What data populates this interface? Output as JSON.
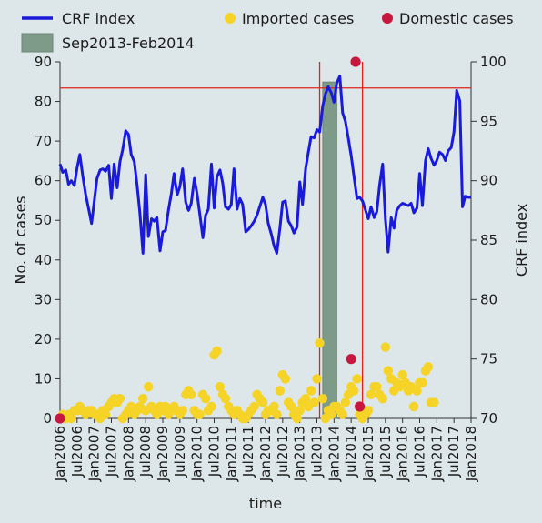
{
  "chart_data": {
    "type": "line+scatter",
    "xlabel": "time",
    "ylabel_left": "No. of cases",
    "ylabel_right": "CRF index",
    "xlim": [
      2006.0,
      2018.0
    ],
    "ylim_left": [
      0,
      90
    ],
    "ylim_right": [
      70,
      100
    ],
    "left_ticks": [
      0,
      10,
      20,
      30,
      40,
      50,
      60,
      70,
      80,
      90
    ],
    "right_ticks": [
      70,
      75,
      80,
      85,
      90,
      95,
      100
    ],
    "x_ticks": [
      {
        "label": "Jan2006",
        "x": 2006.0
      },
      {
        "label": "Jul2006",
        "x": 2006.5
      },
      {
        "label": "Jan2007",
        "x": 2007.0
      },
      {
        "label": "Jul2007",
        "x": 2007.5
      },
      {
        "label": "Jan2008",
        "x": 2008.0
      },
      {
        "label": "Jul2008",
        "x": 2008.5
      },
      {
        "label": "Jan2009",
        "x": 2009.0
      },
      {
        "label": "Jul2009",
        "x": 2009.5
      },
      {
        "label": "Jan2010",
        "x": 2010.0
      },
      {
        "label": "Jul2010",
        "x": 2010.5
      },
      {
        "label": "Jan2011",
        "x": 2011.0
      },
      {
        "label": "Jul2011",
        "x": 2011.5
      },
      {
        "label": "Jan2012",
        "x": 2012.0
      },
      {
        "label": "Jul2012",
        "x": 2012.5
      },
      {
        "label": "Jan2013",
        "x": 2013.0
      },
      {
        "label": "Jul2013",
        "x": 2013.5
      },
      {
        "label": "Jan2014",
        "x": 2014.0
      },
      {
        "label": "Jul2014",
        "x": 2014.5
      },
      {
        "label": "Jan2015",
        "x": 2015.0
      },
      {
        "label": "Jul2015",
        "x": 2015.5
      },
      {
        "label": "Jan2016",
        "x": 2016.0
      },
      {
        "label": "Jul2016",
        "x": 2016.5
      },
      {
        "label": "Jan2017",
        "x": 2017.0
      },
      {
        "label": "Jul2017",
        "x": 2017.5
      },
      {
        "label": "Jan2018",
        "x": 2018.0
      }
    ],
    "legend": {
      "crf": "CRF index",
      "imported": "Imported cases",
      "domestic": "Domestic cases",
      "period": "Sep2013-Feb2014"
    },
    "colors": {
      "crf": "#1a1adb",
      "imported": "#f5d327",
      "domestic": "#c8173f",
      "period": "#7e9b8a",
      "refline": "#e0231b",
      "background": "#dde6e8"
    },
    "shaded_period": [
      2013.67,
      2014.08
    ],
    "reference_lines": {
      "horizontal_crf": 97.8,
      "vertical_x": [
        2013.58,
        2014.83
      ]
    },
    "crf_series": [
      [
        2006.0,
        91.4
      ],
      [
        2006.08,
        90.7
      ],
      [
        2006.17,
        90.9
      ],
      [
        2006.25,
        89.7
      ],
      [
        2006.33,
        90.0
      ],
      [
        2006.42,
        89.6
      ],
      [
        2006.5,
        91.1
      ],
      [
        2006.58,
        92.2
      ],
      [
        2006.67,
        90.3
      ],
      [
        2006.75,
        88.8
      ],
      [
        2006.83,
        87.7
      ],
      [
        2006.92,
        86.4
      ],
      [
        2007.0,
        88.3
      ],
      [
        2007.08,
        90.2
      ],
      [
        2007.17,
        90.9
      ],
      [
        2007.25,
        91.0
      ],
      [
        2007.33,
        90.8
      ],
      [
        2007.42,
        91.3
      ],
      [
        2007.5,
        88.5
      ],
      [
        2007.58,
        91.4
      ],
      [
        2007.67,
        89.4
      ],
      [
        2007.75,
        91.6
      ],
      [
        2007.83,
        92.6
      ],
      [
        2007.92,
        94.2
      ],
      [
        2008.0,
        93.9
      ],
      [
        2008.08,
        92.2
      ],
      [
        2008.17,
        91.6
      ],
      [
        2008.25,
        89.6
      ],
      [
        2008.33,
        87.3
      ],
      [
        2008.42,
        83.9
      ],
      [
        2008.5,
        90.5
      ],
      [
        2008.58,
        85.3
      ],
      [
        2008.67,
        86.8
      ],
      [
        2008.75,
        86.6
      ],
      [
        2008.83,
        86.9
      ],
      [
        2008.92,
        84.1
      ],
      [
        2009.0,
        85.7
      ],
      [
        2009.08,
        85.8
      ],
      [
        2009.17,
        87.6
      ],
      [
        2009.25,
        88.9
      ],
      [
        2009.33,
        90.6
      ],
      [
        2009.42,
        88.8
      ],
      [
        2009.5,
        89.5
      ],
      [
        2009.58,
        91.0
      ],
      [
        2009.67,
        88.2
      ],
      [
        2009.75,
        87.5
      ],
      [
        2009.83,
        88.1
      ],
      [
        2009.92,
        90.2
      ],
      [
        2010.0,
        88.9
      ],
      [
        2010.08,
        87.2
      ],
      [
        2010.17,
        85.2
      ],
      [
        2010.25,
        87.1
      ],
      [
        2010.33,
        87.6
      ],
      [
        2010.42,
        91.4
      ],
      [
        2010.5,
        87.7
      ],
      [
        2010.58,
        90.3
      ],
      [
        2010.67,
        90.9
      ],
      [
        2010.75,
        89.8
      ],
      [
        2010.83,
        87.8
      ],
      [
        2010.92,
        87.6
      ],
      [
        2011.0,
        88.0
      ],
      [
        2011.08,
        91.0
      ],
      [
        2011.17,
        87.6
      ],
      [
        2011.25,
        88.5
      ],
      [
        2011.33,
        88.0
      ],
      [
        2011.42,
        85.7
      ],
      [
        2011.5,
        85.9
      ],
      [
        2011.58,
        86.2
      ],
      [
        2011.67,
        86.6
      ],
      [
        2011.75,
        87.1
      ],
      [
        2011.83,
        87.8
      ],
      [
        2011.92,
        88.6
      ],
      [
        2012.0,
        88.0
      ],
      [
        2012.08,
        86.4
      ],
      [
        2012.17,
        85.5
      ],
      [
        2012.25,
        84.5
      ],
      [
        2012.33,
        83.9
      ],
      [
        2012.42,
        86.0
      ],
      [
        2012.5,
        88.2
      ],
      [
        2012.58,
        88.3
      ],
      [
        2012.67,
        86.6
      ],
      [
        2012.75,
        86.2
      ],
      [
        2012.83,
        85.6
      ],
      [
        2012.92,
        86.1
      ],
      [
        2013.0,
        89.9
      ],
      [
        2013.08,
        88.0
      ],
      [
        2013.17,
        91.0
      ],
      [
        2013.25,
        92.4
      ],
      [
        2013.33,
        93.7
      ],
      [
        2013.42,
        93.6
      ],
      [
        2013.5,
        94.3
      ],
      [
        2013.58,
        94.1
      ],
      [
        2013.67,
        96.3
      ],
      [
        2013.75,
        97.3
      ],
      [
        2013.83,
        97.9
      ],
      [
        2013.92,
        97.4
      ],
      [
        2014.0,
        96.6
      ],
      [
        2014.08,
        98.2
      ],
      [
        2014.17,
        98.8
      ],
      [
        2014.25,
        95.7
      ],
      [
        2014.33,
        95.0
      ],
      [
        2014.42,
        93.5
      ],
      [
        2014.5,
        92.1
      ],
      [
        2014.58,
        90.4
      ],
      [
        2014.67,
        88.5
      ],
      [
        2014.75,
        88.6
      ],
      [
        2014.83,
        88.3
      ],
      [
        2014.92,
        87.5
      ],
      [
        2015.0,
        86.8
      ],
      [
        2015.08,
        87.8
      ],
      [
        2015.17,
        86.9
      ],
      [
        2015.25,
        87.4
      ],
      [
        2015.33,
        89.6
      ],
      [
        2015.42,
        91.4
      ],
      [
        2015.5,
        86.8
      ],
      [
        2015.58,
        84.0
      ],
      [
        2015.67,
        86.9
      ],
      [
        2015.75,
        86.0
      ],
      [
        2015.83,
        87.5
      ],
      [
        2015.92,
        87.9
      ],
      [
        2016.0,
        88.1
      ],
      [
        2016.08,
        88.0
      ],
      [
        2016.17,
        87.9
      ],
      [
        2016.25,
        88.1
      ],
      [
        2016.33,
        87.3
      ],
      [
        2016.42,
        87.7
      ],
      [
        2016.5,
        90.6
      ],
      [
        2016.58,
        87.9
      ],
      [
        2016.67,
        91.7
      ],
      [
        2016.75,
        92.7
      ],
      [
        2016.83,
        91.9
      ],
      [
        2016.92,
        91.3
      ],
      [
        2017.0,
        91.7
      ],
      [
        2017.08,
        92.4
      ],
      [
        2017.17,
        92.2
      ],
      [
        2017.25,
        91.7
      ],
      [
        2017.33,
        92.5
      ],
      [
        2017.42,
        92.8
      ],
      [
        2017.5,
        94.1
      ],
      [
        2017.58,
        97.6
      ],
      [
        2017.67,
        96.7
      ],
      [
        2017.75,
        87.8
      ],
      [
        2017.83,
        88.7
      ],
      [
        2017.92,
        88.6
      ],
      [
        2018.0,
        88.6
      ]
    ],
    "imported_cases": [
      [
        2006.0,
        0
      ],
      [
        2006.08,
        1
      ],
      [
        2006.17,
        0
      ],
      [
        2006.25,
        1
      ],
      [
        2006.33,
        0
      ],
      [
        2006.42,
        2
      ],
      [
        2006.5,
        2
      ],
      [
        2006.58,
        3
      ],
      [
        2006.67,
        2
      ],
      [
        2006.75,
        1
      ],
      [
        2006.83,
        2
      ],
      [
        2006.92,
        2
      ],
      [
        2007.0,
        1
      ],
      [
        2007.08,
        1
      ],
      [
        2007.17,
        0
      ],
      [
        2007.25,
        2
      ],
      [
        2007.33,
        1
      ],
      [
        2007.42,
        3
      ],
      [
        2007.5,
        4
      ],
      [
        2007.58,
        5
      ],
      [
        2007.67,
        4
      ],
      [
        2007.75,
        5
      ],
      [
        2007.83,
        0
      ],
      [
        2007.92,
        1
      ],
      [
        2008.0,
        2
      ],
      [
        2008.08,
        3
      ],
      [
        2008.17,
        1
      ],
      [
        2008.25,
        2
      ],
      [
        2008.33,
        3
      ],
      [
        2008.42,
        5
      ],
      [
        2008.5,
        2
      ],
      [
        2008.58,
        8
      ],
      [
        2008.67,
        3
      ],
      [
        2008.75,
        2
      ],
      [
        2008.83,
        1
      ],
      [
        2008.92,
        3
      ],
      [
        2009.0,
        2
      ],
      [
        2009.08,
        3
      ],
      [
        2009.17,
        1
      ],
      [
        2009.25,
        2
      ],
      [
        2009.33,
        3
      ],
      [
        2009.42,
        2
      ],
      [
        2009.5,
        1
      ],
      [
        2009.58,
        2
      ],
      [
        2009.67,
        6
      ],
      [
        2009.75,
        7
      ],
      [
        2009.83,
        6
      ],
      [
        2009.92,
        2
      ],
      [
        2010.0,
        1
      ],
      [
        2010.08,
        1
      ],
      [
        2010.17,
        6
      ],
      [
        2010.25,
        5
      ],
      [
        2010.33,
        2
      ],
      [
        2010.42,
        3
      ],
      [
        2010.5,
        16
      ],
      [
        2010.58,
        17
      ],
      [
        2010.67,
        8
      ],
      [
        2010.75,
        6
      ],
      [
        2010.83,
        5
      ],
      [
        2010.92,
        3
      ],
      [
        2011.0,
        2
      ],
      [
        2011.08,
        1
      ],
      [
        2011.17,
        2
      ],
      [
        2011.25,
        1
      ],
      [
        2011.33,
        0
      ],
      [
        2011.42,
        0
      ],
      [
        2011.5,
        1
      ],
      [
        2011.58,
        2
      ],
      [
        2011.67,
        3
      ],
      [
        2011.75,
        6
      ],
      [
        2011.83,
        5
      ],
      [
        2011.92,
        4
      ],
      [
        2012.0,
        1
      ],
      [
        2012.08,
        2
      ],
      [
        2012.17,
        2
      ],
      [
        2012.25,
        3
      ],
      [
        2012.33,
        1
      ],
      [
        2012.42,
        7
      ],
      [
        2012.5,
        11
      ],
      [
        2012.58,
        10
      ],
      [
        2012.67,
        4
      ],
      [
        2012.75,
        3
      ],
      [
        2012.83,
        1
      ],
      [
        2012.92,
        0
      ],
      [
        2013.0,
        2
      ],
      [
        2013.08,
        4
      ],
      [
        2013.17,
        5
      ],
      [
        2013.25,
        3
      ],
      [
        2013.33,
        7
      ],
      [
        2013.42,
        4
      ],
      [
        2013.5,
        10
      ],
      [
        2013.58,
        19
      ],
      [
        2013.67,
        5
      ],
      [
        2013.75,
        0
      ],
      [
        2013.83,
        2
      ],
      [
        2013.92,
        1
      ],
      [
        2014.0,
        3
      ],
      [
        2014.08,
        3
      ],
      [
        2014.17,
        2
      ],
      [
        2014.25,
        1
      ],
      [
        2014.33,
        4
      ],
      [
        2014.42,
        6
      ],
      [
        2014.5,
        8
      ],
      [
        2014.58,
        7
      ],
      [
        2014.67,
        10
      ],
      [
        2014.75,
        1
      ],
      [
        2014.83,
        0
      ],
      [
        2014.92,
        1
      ],
      [
        2015.0,
        2
      ],
      [
        2015.08,
        6
      ],
      [
        2015.17,
        8
      ],
      [
        2015.25,
        8
      ],
      [
        2015.33,
        6
      ],
      [
        2015.42,
        5
      ],
      [
        2015.5,
        18
      ],
      [
        2015.58,
        12
      ],
      [
        2015.67,
        10
      ],
      [
        2015.75,
        7
      ],
      [
        2015.83,
        9
      ],
      [
        2015.92,
        8
      ],
      [
        2016.0,
        11
      ],
      [
        2016.08,
        9
      ],
      [
        2016.17,
        7
      ],
      [
        2016.25,
        8
      ],
      [
        2016.33,
        3
      ],
      [
        2016.42,
        7
      ],
      [
        2016.5,
        9
      ],
      [
        2016.58,
        9
      ],
      [
        2016.67,
        12
      ],
      [
        2016.75,
        13
      ],
      [
        2016.83,
        4
      ],
      [
        2016.92,
        4
      ]
    ],
    "domestic_cases": [
      [
        2006.0,
        0
      ],
      [
        2014.5,
        15
      ],
      [
        2014.63,
        90
      ],
      [
        2014.75,
        3
      ]
    ]
  }
}
